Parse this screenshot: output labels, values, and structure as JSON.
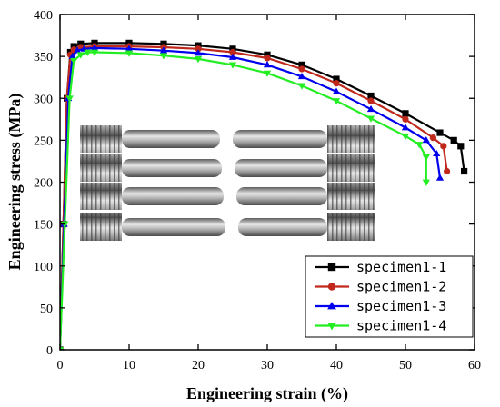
{
  "chart_data": {
    "type": "line",
    "xlabel": "Engineering strain (%)",
    "ylabel": "Engineering stress (MPa)",
    "xlim": [
      0,
      60
    ],
    "ylim": [
      0,
      400
    ],
    "xticks": [
      0,
      10,
      20,
      30,
      40,
      50,
      60
    ],
    "yticks": [
      0,
      50,
      100,
      150,
      200,
      250,
      300,
      350,
      400
    ],
    "grid": false,
    "legend_position": "bottom-right",
    "inset_photo": "four fractured dog-bone tensile specimens labeled 1-1 to 1-4",
    "series": [
      {
        "name": "specimen1-1",
        "color": "#000000",
        "marker": "square",
        "x": [
          0,
          0.5,
          1.0,
          1.5,
          2,
          3,
          5,
          10,
          15,
          20,
          25,
          30,
          35,
          40,
          45,
          50,
          55,
          57,
          58,
          58.5
        ],
        "y": [
          0,
          150,
          300,
          355,
          362,
          365,
          366,
          366,
          365,
          363,
          359,
          352,
          340,
          323,
          303,
          282,
          259,
          250,
          243,
          213
        ]
      },
      {
        "name": "specimen1-2",
        "color": "#c0281c",
        "marker": "circle",
        "x": [
          0,
          0.5,
          1.0,
          1.5,
          2,
          3,
          5,
          10,
          15,
          20,
          25,
          30,
          35,
          40,
          45,
          50,
          54,
          55.5,
          56
        ],
        "y": [
          0,
          150,
          300,
          352,
          358,
          361,
          362,
          362,
          361,
          359,
          355,
          348,
          335,
          318,
          297,
          275,
          253,
          243,
          213
        ]
      },
      {
        "name": "specimen1-3",
        "color": "#0000ee",
        "marker": "triangle-up",
        "x": [
          0,
          0.6,
          1.2,
          1.8,
          2.5,
          3.5,
          5,
          10,
          15,
          20,
          25,
          30,
          35,
          40,
          45,
          50,
          53,
          54.5,
          55
        ],
        "y": [
          0,
          150,
          300,
          350,
          357,
          359,
          360,
          359,
          357,
          354,
          349,
          340,
          326,
          308,
          287,
          265,
          250,
          234,
          205
        ]
      },
      {
        "name": "specimen1-4",
        "color": "#22ee22",
        "marker": "triangle-down",
        "x": [
          0,
          0.7,
          1.4,
          2,
          3,
          4,
          5,
          10,
          15,
          20,
          25,
          30,
          35,
          40,
          45,
          50,
          52,
          53,
          53
        ],
        "y": [
          0,
          150,
          300,
          345,
          352,
          355,
          355,
          354,
          351,
          347,
          340,
          330,
          315,
          297,
          276,
          255,
          245,
          230,
          200
        ]
      }
    ]
  }
}
